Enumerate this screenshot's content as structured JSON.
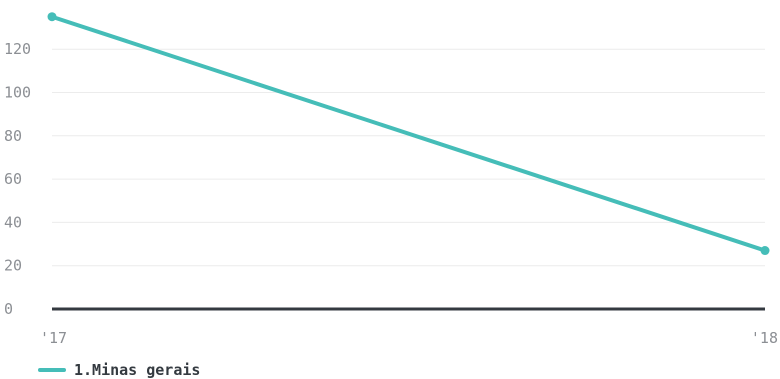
{
  "chart_data": {
    "type": "line",
    "x": [
      "'17",
      "'18"
    ],
    "series": [
      {
        "name": "1.Minas gerais",
        "values": [
          135,
          27
        ],
        "color": "#45bdb8"
      }
    ],
    "y_ticks": [
      0,
      20,
      40,
      60,
      80,
      100,
      120
    ],
    "ylim": [
      0,
      140
    ],
    "grid": true,
    "legend_position": "bottom-left",
    "title": "",
    "xlabel": "",
    "ylabel": ""
  },
  "colors": {
    "series": "#45bdb8",
    "grid": "#ececec",
    "baseline": "#343a40",
    "tick_text": "#8c8f94"
  }
}
